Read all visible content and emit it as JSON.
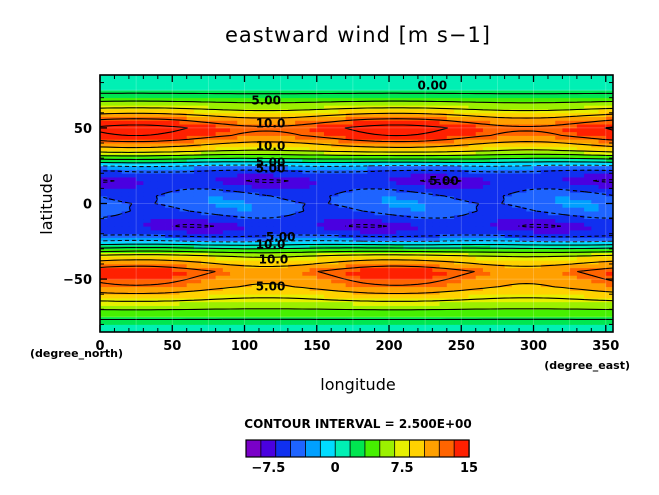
{
  "chart_data": {
    "type": "heatmap",
    "title": "eastward wind [m s−1]",
    "xlabel": "longitude",
    "ylabel": "latitude",
    "x_unit": "(degree_east)",
    "y_unit": "(degree_north)",
    "xlim": [
      0,
      355
    ],
    "ylim": [
      -85,
      85
    ],
    "xticks": [
      0,
      50,
      100,
      150,
      200,
      250,
      300,
      350
    ],
    "yticks": [
      -50,
      0,
      50
    ],
    "ytick_labels": [
      "−50",
      "0",
      "50"
    ],
    "contour_interval_text": "CONTOUR INTERVAL = 2.500E+00",
    "contour_interval": 2.5,
    "colorbar": {
      "ticks": [
        -7.5,
        0,
        7.5,
        15
      ],
      "tick_labels": [
        "−7.5",
        "0",
        "7.5",
        "15"
      ],
      "range": [
        -10,
        15
      ]
    },
    "contour_labels": [
      "0.00",
      "5.00",
      "10.0",
      "10.0",
      "5.00",
      "5.00",
      "5.00",
      "5.00",
      "10.0",
      "10.0",
      "5.00"
    ],
    "zonal_profile": {
      "lat": [
        -85,
        -75,
        -65,
        -55,
        -45,
        -35,
        -30,
        -25,
        -20,
        -15,
        -10,
        -5,
        0,
        5,
        10,
        15,
        20,
        25,
        30,
        35,
        45,
        50,
        55,
        65,
        75,
        85
      ],
      "u": [
        0,
        3,
        7,
        11,
        13,
        8,
        3,
        -2.5,
        -6,
        -7,
        -6,
        -4.5,
        -4,
        -4.5,
        -6,
        -7,
        -6,
        -2.5,
        3,
        8,
        13.5,
        14.5,
        12,
        6,
        1.5,
        0
      ]
    },
    "grid": true,
    "colormap": [
      "#7a00c8",
      "#4a00e0",
      "#1030f0",
      "#1e64ff",
      "#00a0ff",
      "#00dcff",
      "#00f0b4",
      "#00e650",
      "#46f000",
      "#9bf000",
      "#e6f000",
      "#ffd200",
      "#ffa000",
      "#ff6400",
      "#ff2000"
    ]
  }
}
